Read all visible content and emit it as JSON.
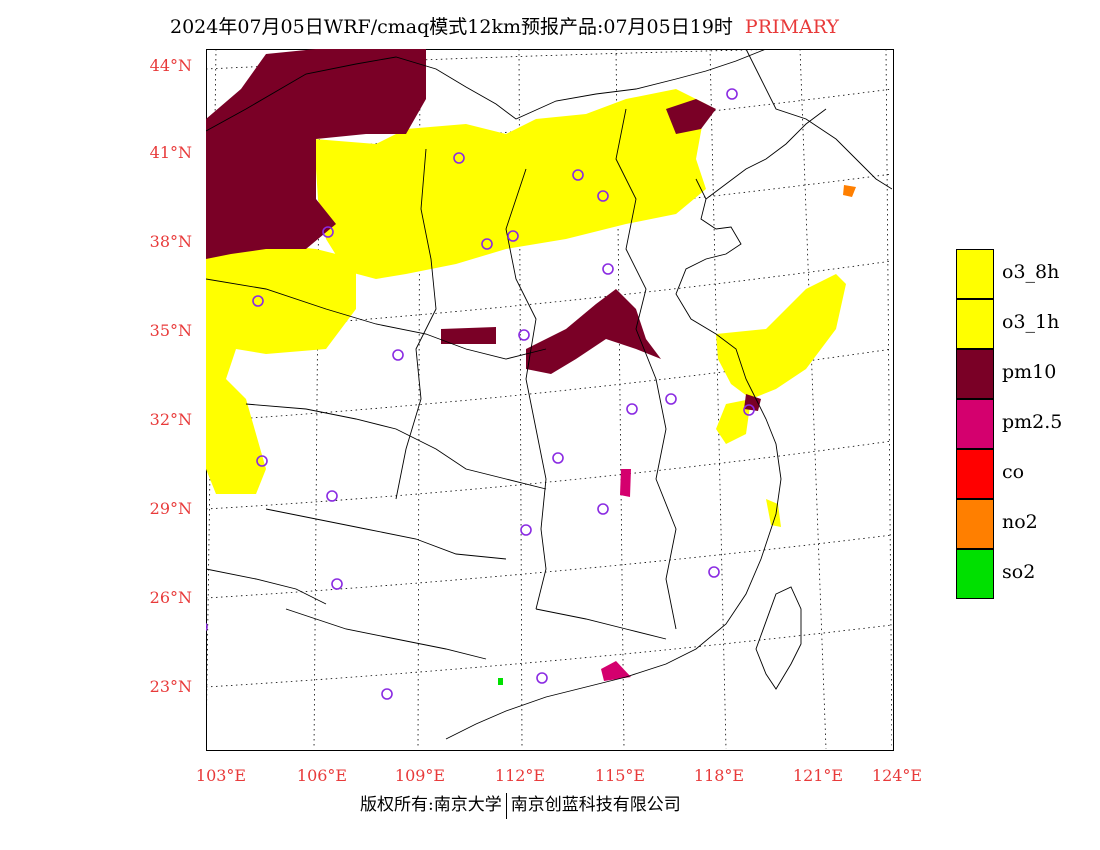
{
  "header": {
    "title": "2024年07月05日WRF/cmaq模式12km预报产品:07月05日19时",
    "status": "PRIMARY",
    "status_color": "#e83a3a"
  },
  "axes": {
    "lat_labels": [
      "44°N",
      "41°N",
      "38°N",
      "35°N",
      "32°N",
      "29°N",
      "26°N",
      "23°N"
    ],
    "lon_labels": [
      "103°E",
      "106°E",
      "109°E",
      "112°E",
      "115°E",
      "118°E",
      "121°E",
      "124°E"
    ],
    "label_color": "#e83a3a"
  },
  "legend": [
    {
      "label": "o3_8h",
      "color": "#ffff00"
    },
    {
      "label": "o3_1h",
      "color": "#ffff00"
    },
    {
      "label": "pm10",
      "color": "#7a0026"
    },
    {
      "label": "pm2.5",
      "color": "#d4006e"
    },
    {
      "label": "co",
      "color": "#ff0000"
    },
    {
      "label": "no2",
      "color": "#ff7f00"
    },
    {
      "label": "so2",
      "color": "#00e000"
    }
  ],
  "footer": {
    "left": "版权所有:南京大学",
    "right": "南京创蓝科技有限公司"
  }
}
